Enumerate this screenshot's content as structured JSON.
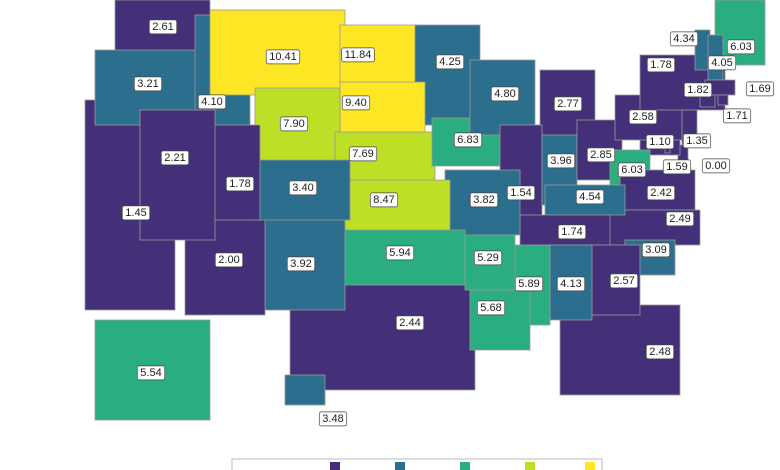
{
  "map": {
    "regions": [
      {
        "value": 1.45,
        "label": "1.45",
        "color": "#433079"
      },
      {
        "value": 2.44,
        "label": "2.44",
        "color": "#433079"
      },
      {
        "value": 2.48,
        "label": "2.48",
        "color": "#433079"
      },
      {
        "value": 5.54,
        "label": "5.54",
        "color": "#2aae80"
      },
      {
        "value": 3.48,
        "label": "3.48",
        "color": "#2c6e8e"
      },
      {
        "value": 2.61,
        "label": "2.61",
        "color": "#433079"
      },
      {
        "value": 3.21,
        "label": "3.21",
        "color": "#2c6e8e"
      },
      {
        "value": 4.1,
        "label": "4.10",
        "color": "#2c6e8e"
      },
      {
        "value": 10.41,
        "label": "10.41",
        "color": "#fde725"
      },
      {
        "value": 11.84,
        "label": "11.84",
        "color": "#fde725"
      },
      {
        "value": 4.25,
        "label": "4.25",
        "color": "#2c6e8e"
      },
      {
        "value": 9.4,
        "label": "9.40",
        "color": "#fde725"
      },
      {
        "value": 7.9,
        "label": "7.90",
        "color": "#bddf26"
      },
      {
        "value": 7.69,
        "label": "7.69",
        "color": "#bddf26"
      },
      {
        "value": 6.83,
        "label": "6.83",
        "color": "#2aae80"
      },
      {
        "value": 4.8,
        "label": "4.80",
        "color": "#2c6e8e"
      },
      {
        "value": 2.77,
        "label": "2.77",
        "color": "#433079"
      },
      {
        "value": 1.54,
        "label": "1.54",
        "color": "#433079"
      },
      {
        "value": 3.96,
        "label": "3.96",
        "color": "#2c6e8e"
      },
      {
        "value": 2.85,
        "label": "2.85",
        "color": "#433079"
      },
      {
        "value": 2.58,
        "label": "2.58",
        "color": "#433079"
      },
      {
        "value": 1.82,
        "label": "1.82",
        "color": "#433079"
      },
      {
        "value": 4.34,
        "label": "4.34",
        "color": "#2c6e8e"
      },
      {
        "value": 6.03,
        "label": "6.03",
        "color": "#2aae80"
      },
      {
        "value": 4.05,
        "label": "4.05",
        "color": "#2c6e8e"
      },
      {
        "value": 1.69,
        "label": "1.69",
        "color": "#433079"
      },
      {
        "value": 1.71,
        "label": "1.71",
        "color": "#433079"
      },
      {
        "value": 1.78,
        "label": "1.78",
        "color": "#433079"
      },
      {
        "value": 1.35,
        "label": "1.35",
        "color": "#433079"
      },
      {
        "value": 0,
        "label": "0.00",
        "color": "#433079"
      },
      {
        "value": 1.59,
        "label": "1.59",
        "color": "#433079"
      },
      {
        "value": 1.1,
        "label": "1.10",
        "color": "#433079"
      },
      {
        "value": 6.03,
        "label": "6.03",
        "color": "#2aae80"
      },
      {
        "value": 2.42,
        "label": "2.42",
        "color": "#433079"
      },
      {
        "value": 2.49,
        "label": "2.49",
        "color": "#433079"
      },
      {
        "value": 4.54,
        "label": "4.54",
        "color": "#2c6e8e"
      },
      {
        "value": 1.74,
        "label": "1.74",
        "color": "#433079"
      },
      {
        "value": 3.09,
        "label": "3.09",
        "color": "#2c6e8e"
      },
      {
        "value": 2.57,
        "label": "2.57",
        "color": "#433079"
      },
      {
        "value": 4.13,
        "label": "4.13",
        "color": "#2c6e8e"
      },
      {
        "value": 5.89,
        "label": "5.89",
        "color": "#2aae80"
      },
      {
        "value": 5.68,
        "label": "5.68",
        "color": "#2aae80"
      },
      {
        "value": 5.29,
        "label": "5.29",
        "color": "#2aae80"
      },
      {
        "value": 3.82,
        "label": "3.82",
        "color": "#2c6e8e"
      },
      {
        "value": 8.47,
        "label": "8.47",
        "color": "#bddf26"
      },
      {
        "value": 5.94,
        "label": "5.94",
        "color": "#2aae80"
      },
      {
        "value": 3.92,
        "label": "3.92",
        "color": "#2c6e8e"
      },
      {
        "value": 2,
        "label": "2.00",
        "color": "#433079"
      },
      {
        "value": 3.4,
        "label": "3.40",
        "color": "#2c6e8e"
      },
      {
        "value": 1.78,
        "label": "1.78",
        "color": "#433079"
      },
      {
        "value": 2.21,
        "label": "2.21",
        "color": "#433079"
      }
    ]
  }
}
